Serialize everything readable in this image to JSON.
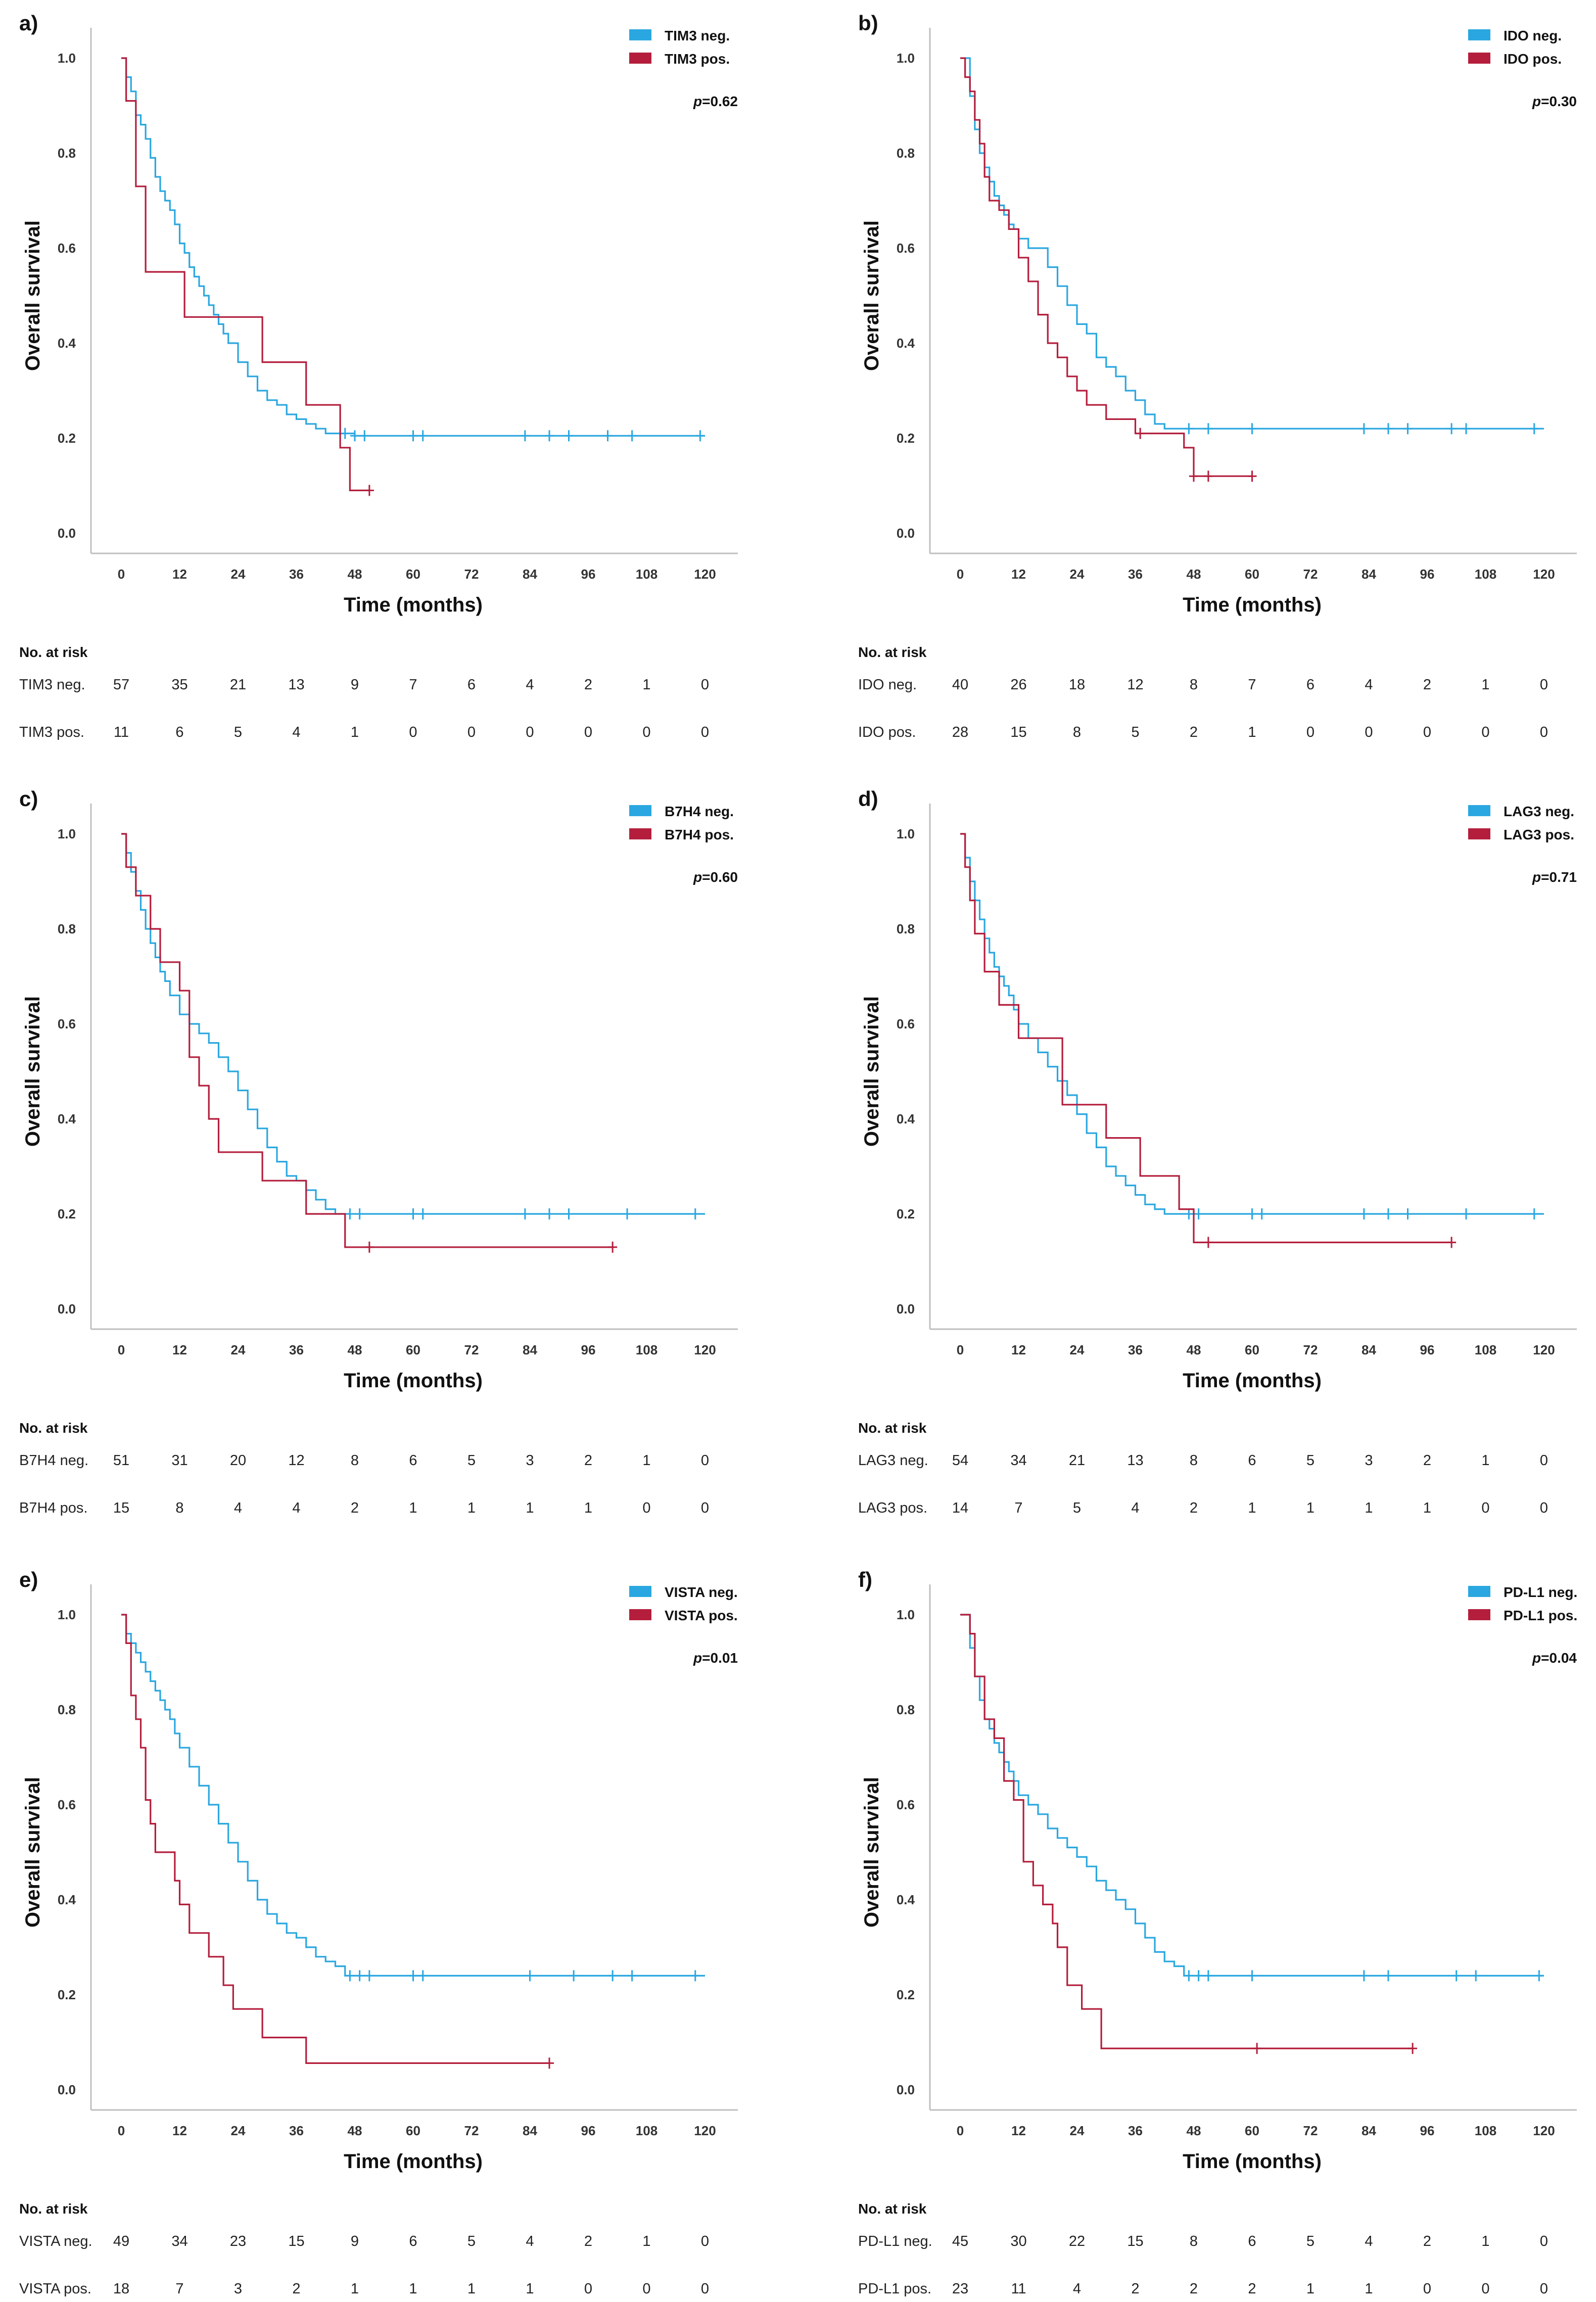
{
  "figure": {
    "xlabel": "Time (months)",
    "ylabel": "Overall survival",
    "risk_title": "No. at risk"
  },
  "colors": {
    "neg": "#2aa7e0",
    "pos": "#b41e3c"
  },
  "chart_data": [
    {
      "type": "line",
      "panel": "a)",
      "xlim": [
        0,
        120
      ],
      "ylim": [
        0,
        1.0
      ],
      "xticks": [
        0,
        12,
        24,
        36,
        48,
        60,
        72,
        84,
        96,
        108,
        120
      ],
      "yticks": [
        "0.0",
        "0.2",
        "0.4",
        "0.6",
        "0.8",
        "1.0"
      ],
      "p_value": "=0.62",
      "series": [
        {
          "name": "TIM3 neg.",
          "x": [
            0,
            1,
            2,
            3,
            4,
            5,
            6,
            7,
            8,
            9,
            10,
            11,
            12,
            13,
            14,
            15,
            16,
            17,
            18,
            19,
            20,
            21,
            22,
            24,
            26,
            28,
            30,
            32,
            34,
            36,
            38,
            40,
            42,
            44,
            48,
            120
          ],
          "y": [
            1.0,
            0.96,
            0.93,
            0.88,
            0.86,
            0.83,
            0.79,
            0.75,
            0.72,
            0.7,
            0.68,
            0.65,
            0.61,
            0.59,
            0.56,
            0.54,
            0.52,
            0.5,
            0.48,
            0.46,
            0.44,
            0.42,
            0.4,
            0.36,
            0.33,
            0.3,
            0.28,
            0.27,
            0.25,
            0.24,
            0.23,
            0.22,
            0.21,
            0.21,
            0.205,
            0.205
          ],
          "censor": [
            46,
            48,
            50,
            60,
            62,
            83,
            88,
            92,
            100,
            105,
            119
          ]
        },
        {
          "name": "TIM3 pos.",
          "x": [
            0,
            1,
            3,
            5,
            13,
            29,
            38,
            45,
            47,
            51
          ],
          "y": [
            1.0,
            0.91,
            0.73,
            0.55,
            0.455,
            0.36,
            0.27,
            0.18,
            0.09,
            0.09
          ],
          "censor": [
            51
          ]
        }
      ],
      "risk_table": [
        {
          "label": "TIM3 neg.",
          "values": [
            57,
            35,
            21,
            13,
            9,
            7,
            6,
            4,
            2,
            1,
            0
          ]
        },
        {
          "label": "TIM3 pos.",
          "values": [
            11,
            6,
            5,
            4,
            1,
            0,
            0,
            0,
            0,
            0,
            0
          ]
        }
      ]
    },
    {
      "type": "line",
      "panel": "b)",
      "xlim": [
        0,
        120
      ],
      "ylim": [
        0,
        1.0
      ],
      "xticks": [
        0,
        12,
        24,
        36,
        48,
        60,
        72,
        84,
        96,
        108,
        120
      ],
      "yticks": [
        "0.0",
        "0.2",
        "0.4",
        "0.6",
        "0.8",
        "1.0"
      ],
      "p_value": "=0.30",
      "series": [
        {
          "name": "IDO neg.",
          "x": [
            0,
            2,
            3,
            4,
            5,
            6,
            7,
            8,
            9,
            10,
            11,
            12,
            14,
            16,
            18,
            20,
            22,
            24,
            26,
            28,
            30,
            32,
            34,
            36,
            38,
            40,
            42,
            44,
            120
          ],
          "y": [
            1.0,
            0.92,
            0.85,
            0.8,
            0.77,
            0.74,
            0.71,
            0.69,
            0.67,
            0.65,
            0.64,
            0.62,
            0.6,
            0.6,
            0.56,
            0.52,
            0.48,
            0.44,
            0.42,
            0.37,
            0.35,
            0.33,
            0.3,
            0.28,
            0.25,
            0.23,
            0.22,
            0.22,
            0.22
          ],
          "censor": [
            47,
            51,
            60,
            83,
            88,
            92,
            101,
            104,
            118
          ]
        },
        {
          "name": "IDO pos.",
          "x": [
            0,
            1,
            2,
            3,
            4,
            5,
            6,
            8,
            10,
            12,
            14,
            16,
            18,
            20,
            22,
            24,
            26,
            30,
            36,
            46,
            48,
            60
          ],
          "y": [
            1.0,
            0.96,
            0.93,
            0.87,
            0.82,
            0.75,
            0.7,
            0.68,
            0.64,
            0.58,
            0.53,
            0.46,
            0.4,
            0.37,
            0.33,
            0.3,
            0.27,
            0.24,
            0.21,
            0.18,
            0.12,
            0.12
          ],
          "censor": [
            37,
            48,
            51,
            60
          ]
        }
      ],
      "risk_table": [
        {
          "label": "IDO neg.",
          "values": [
            40,
            26,
            18,
            12,
            8,
            7,
            6,
            4,
            2,
            1,
            0
          ]
        },
        {
          "label": "IDO pos.",
          "values": [
            28,
            15,
            8,
            5,
            2,
            1,
            0,
            0,
            0,
            0,
            0
          ]
        }
      ]
    },
    {
      "type": "line",
      "panel": "c)",
      "xlim": [
        0,
        120
      ],
      "ylim": [
        0,
        1.0
      ],
      "xticks": [
        0,
        12,
        24,
        36,
        48,
        60,
        72,
        84,
        96,
        108,
        120
      ],
      "yticks": [
        "0.0",
        "0.2",
        "0.4",
        "0.6",
        "0.8",
        "1.0"
      ],
      "p_value": "=0.60",
      "series": [
        {
          "name": "B7H4 neg.",
          "x": [
            0,
            1,
            2,
            3,
            4,
            5,
            6,
            7,
            8,
            9,
            10,
            12,
            14,
            16,
            18,
            20,
            22,
            24,
            26,
            28,
            30,
            32,
            34,
            36,
            38,
            40,
            42,
            44,
            120
          ],
          "y": [
            1.0,
            0.96,
            0.92,
            0.88,
            0.84,
            0.8,
            0.77,
            0.74,
            0.71,
            0.69,
            0.66,
            0.62,
            0.6,
            0.58,
            0.56,
            0.53,
            0.5,
            0.46,
            0.42,
            0.38,
            0.34,
            0.31,
            0.28,
            0.27,
            0.25,
            0.23,
            0.21,
            0.2,
            0.2
          ],
          "censor": [
            47,
            49,
            60,
            62,
            83,
            88,
            92,
            104,
            118
          ]
        },
        {
          "name": "B7H4 pos.",
          "x": [
            0,
            1,
            3,
            6,
            8,
            12,
            14,
            16,
            18,
            20,
            29,
            31,
            36,
            38,
            46,
            51,
            101
          ],
          "y": [
            1.0,
            0.93,
            0.87,
            0.8,
            0.73,
            0.67,
            0.53,
            0.47,
            0.4,
            0.33,
            0.27,
            0.27,
            0.27,
            0.2,
            0.13,
            0.13,
            0.13
          ],
          "censor": [
            51,
            101
          ]
        }
      ],
      "risk_table": [
        {
          "label": "B7H4 neg.",
          "values": [
            51,
            31,
            20,
            12,
            8,
            6,
            5,
            3,
            2,
            1,
            0
          ]
        },
        {
          "label": "B7H4 pos.",
          "values": [
            15,
            8,
            4,
            4,
            2,
            1,
            1,
            1,
            1,
            0,
            0
          ]
        }
      ]
    },
    {
      "type": "line",
      "panel": "d)",
      "xlim": [
        0,
        120
      ],
      "ylim": [
        0,
        1.0
      ],
      "xticks": [
        0,
        12,
        24,
        36,
        48,
        60,
        72,
        84,
        96,
        108,
        120
      ],
      "yticks": [
        "0.0",
        "0.2",
        "0.4",
        "0.6",
        "0.8",
        "1.0"
      ],
      "p_value": "=0.71",
      "series": [
        {
          "name": "LAG3 neg.",
          "x": [
            0,
            1,
            2,
            3,
            4,
            5,
            6,
            7,
            8,
            9,
            10,
            11,
            12,
            14,
            16,
            18,
            20,
            22,
            24,
            26,
            28,
            30,
            32,
            34,
            36,
            38,
            40,
            42,
            44,
            120
          ],
          "y": [
            1.0,
            0.95,
            0.9,
            0.86,
            0.82,
            0.78,
            0.75,
            0.72,
            0.7,
            0.68,
            0.66,
            0.63,
            0.6,
            0.57,
            0.54,
            0.51,
            0.48,
            0.45,
            0.41,
            0.37,
            0.34,
            0.3,
            0.28,
            0.26,
            0.24,
            0.22,
            0.21,
            0.2,
            0.2,
            0.2
          ],
          "censor": [
            47,
            49,
            60,
            62,
            83,
            88,
            92,
            104,
            118
          ]
        },
        {
          "name": "LAG3 pos.",
          "x": [
            0,
            1,
            2,
            3,
            5,
            8,
            12,
            21,
            30,
            37,
            45,
            48,
            101
          ],
          "y": [
            1.0,
            0.93,
            0.86,
            0.79,
            0.71,
            0.64,
            0.57,
            0.43,
            0.36,
            0.28,
            0.21,
            0.14,
            0.14
          ],
          "censor": [
            51,
            101
          ]
        }
      ],
      "risk_table": [
        {
          "label": "LAG3 neg.",
          "values": [
            54,
            34,
            21,
            13,
            8,
            6,
            5,
            3,
            2,
            1,
            0
          ]
        },
        {
          "label": "LAG3 pos.",
          "values": [
            14,
            7,
            5,
            4,
            2,
            1,
            1,
            1,
            1,
            0,
            0
          ]
        }
      ]
    },
    {
      "type": "line",
      "panel": "e)",
      "xlim": [
        0,
        120
      ],
      "ylim": [
        0,
        1.0
      ],
      "xticks": [
        0,
        12,
        24,
        36,
        48,
        60,
        72,
        84,
        96,
        108,
        120
      ],
      "yticks": [
        "0.0",
        "0.2",
        "0.4",
        "0.6",
        "0.8",
        "1.0"
      ],
      "p_value": "=0.01",
      "series": [
        {
          "name": "VISTA neg.",
          "x": [
            0,
            1,
            2,
            3,
            4,
            5,
            6,
            7,
            8,
            9,
            10,
            11,
            12,
            14,
            16,
            18,
            20,
            22,
            24,
            26,
            28,
            30,
            32,
            34,
            36,
            38,
            40,
            42,
            44,
            46,
            120
          ],
          "y": [
            1.0,
            0.96,
            0.94,
            0.92,
            0.9,
            0.88,
            0.86,
            0.84,
            0.82,
            0.8,
            0.78,
            0.75,
            0.72,
            0.68,
            0.64,
            0.6,
            0.56,
            0.52,
            0.48,
            0.44,
            0.4,
            0.37,
            0.35,
            0.33,
            0.32,
            0.3,
            0.28,
            0.27,
            0.26,
            0.24,
            0.24
          ],
          "censor": [
            47,
            49,
            51,
            60,
            62,
            84,
            93,
            101,
            105,
            118
          ]
        },
        {
          "name": "VISTA pos.",
          "x": [
            0,
            1,
            2,
            3,
            4,
            5,
            6,
            7,
            11,
            12,
            14,
            18,
            21,
            23,
            29,
            38,
            88
          ],
          "y": [
            1.0,
            0.94,
            0.83,
            0.78,
            0.72,
            0.61,
            0.56,
            0.5,
            0.44,
            0.39,
            0.33,
            0.28,
            0.22,
            0.17,
            0.11,
            0.056,
            0.056
          ],
          "censor": [
            88
          ]
        }
      ],
      "risk_table": [
        {
          "label": "VISTA neg.",
          "values": [
            49,
            34,
            23,
            15,
            9,
            6,
            5,
            4,
            2,
            1,
            0
          ]
        },
        {
          "label": "VISTA pos.",
          "values": [
            18,
            7,
            3,
            2,
            1,
            1,
            1,
            1,
            0,
            0,
            0
          ]
        }
      ]
    },
    {
      "type": "line",
      "panel": "f)",
      "xlim": [
        0,
        120
      ],
      "ylim": [
        0,
        1.0
      ],
      "xticks": [
        0,
        12,
        24,
        36,
        48,
        60,
        72,
        84,
        96,
        108,
        120
      ],
      "yticks": [
        "0.0",
        "0.2",
        "0.4",
        "0.6",
        "0.8",
        "1.0"
      ],
      "p_value": "=0.04",
      "series": [
        {
          "name": "PD-L1 neg.",
          "x": [
            0,
            2,
            3,
            4,
            5,
            6,
            7,
            8,
            9,
            10,
            11,
            12,
            14,
            16,
            18,
            20,
            22,
            24,
            26,
            28,
            30,
            32,
            34,
            36,
            38,
            40,
            42,
            44,
            46,
            120
          ],
          "y": [
            1.0,
            0.93,
            0.87,
            0.82,
            0.78,
            0.76,
            0.73,
            0.71,
            0.69,
            0.67,
            0.65,
            0.62,
            0.6,
            0.58,
            0.55,
            0.53,
            0.51,
            0.49,
            0.47,
            0.44,
            0.42,
            0.4,
            0.38,
            0.35,
            0.32,
            0.29,
            0.27,
            0.26,
            0.24,
            0.24
          ],
          "censor": [
            47,
            49,
            51,
            60,
            83,
            88,
            102,
            106,
            119
          ]
        },
        {
          "name": "PD-L1 pos.",
          "x": [
            0,
            2,
            3,
            5,
            7,
            9,
            11,
            13,
            15,
            17,
            19,
            20,
            22,
            25,
            29,
            60,
            93
          ],
          "y": [
            1.0,
            0.96,
            0.87,
            0.78,
            0.74,
            0.65,
            0.61,
            0.48,
            0.43,
            0.39,
            0.35,
            0.3,
            0.22,
            0.17,
            0.087,
            0.087,
            0.087
          ],
          "censor": [
            61,
            93
          ]
        }
      ],
      "risk_table": [
        {
          "label": "PD-L1 neg.",
          "values": [
            45,
            30,
            22,
            15,
            8,
            6,
            5,
            4,
            2,
            1,
            0
          ]
        },
        {
          "label": "PD-L1 pos.",
          "values": [
            23,
            11,
            4,
            2,
            2,
            2,
            1,
            1,
            0,
            0,
            0
          ]
        }
      ]
    }
  ]
}
